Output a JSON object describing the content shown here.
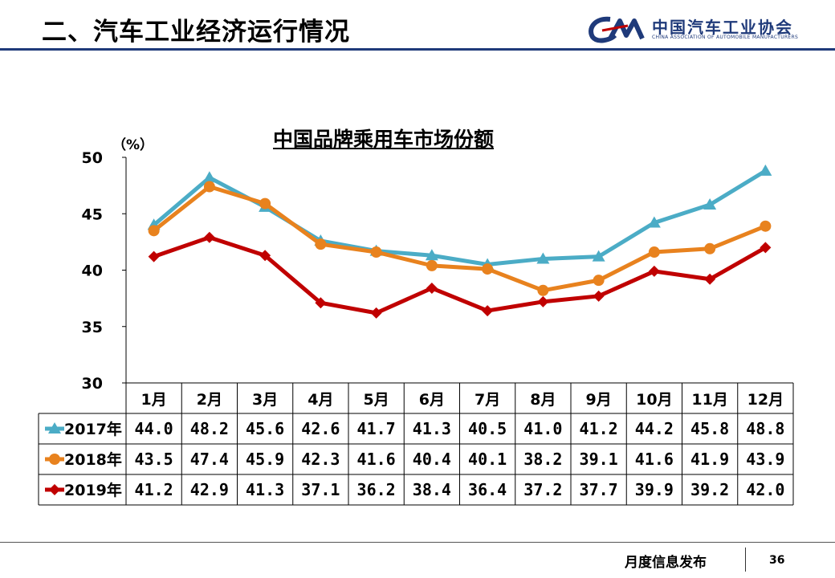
{
  "header": {
    "title": "二、汽车工业经济运行情况",
    "logo_cn": "中国汽车工业协会",
    "logo_en": "CHINA ASSOCIATION OF AUTOMOBILE MANUFACTURERS"
  },
  "footer": {
    "label": "月度信息发布",
    "page": "36"
  },
  "colors": {
    "brand": "#1f3a7a",
    "series_2017": "#4bacc6",
    "series_2018": "#e8821e",
    "series_2019": "#c00000"
  },
  "chart_data": {
    "type": "line",
    "title": "中国品牌乘用车市场份额",
    "ylabel": "（%）",
    "ylim": [
      30,
      50
    ],
    "yticks": [
      "30",
      "35",
      "40",
      "45",
      "50"
    ],
    "grid": false,
    "legend": "table-left",
    "categories": [
      "1月",
      "2月",
      "3月",
      "4月",
      "5月",
      "6月",
      "7月",
      "8月",
      "9月",
      "10月",
      "11月",
      "12月"
    ],
    "series": [
      {
        "name": "2017年",
        "marker": "triangle",
        "color": "#4bacc6",
        "values": [
          44.0,
          48.2,
          45.6,
          42.6,
          41.7,
          41.3,
          40.5,
          41.0,
          41.2,
          44.2,
          45.8,
          48.8
        ],
        "labels": [
          "44.0",
          "48.2",
          "45.6",
          "42.6",
          "41.7",
          "41.3",
          "40.5",
          "41.0",
          "41.2",
          "44.2",
          "45.8",
          "48.8"
        ]
      },
      {
        "name": "2018年",
        "marker": "circle",
        "color": "#e8821e",
        "values": [
          43.5,
          47.4,
          45.9,
          42.3,
          41.6,
          40.4,
          40.1,
          38.2,
          39.1,
          41.6,
          41.9,
          43.9
        ],
        "labels": [
          "43.5",
          "47.4",
          "45.9",
          "42.3",
          "41.6",
          "40.4",
          "40.1",
          "38.2",
          "39.1",
          "41.6",
          "41.9",
          "43.9"
        ]
      },
      {
        "name": "2019年",
        "marker": "diamond",
        "color": "#c00000",
        "values": [
          41.2,
          42.9,
          41.3,
          37.1,
          36.2,
          38.4,
          36.4,
          37.2,
          37.7,
          39.9,
          39.2,
          42.0
        ],
        "labels": [
          "41.2",
          "42.9",
          "41.3",
          "37.1",
          "36.2",
          "38.4",
          "36.4",
          "37.2",
          "37.7",
          "39.9",
          "39.2",
          "42.0"
        ]
      }
    ]
  }
}
